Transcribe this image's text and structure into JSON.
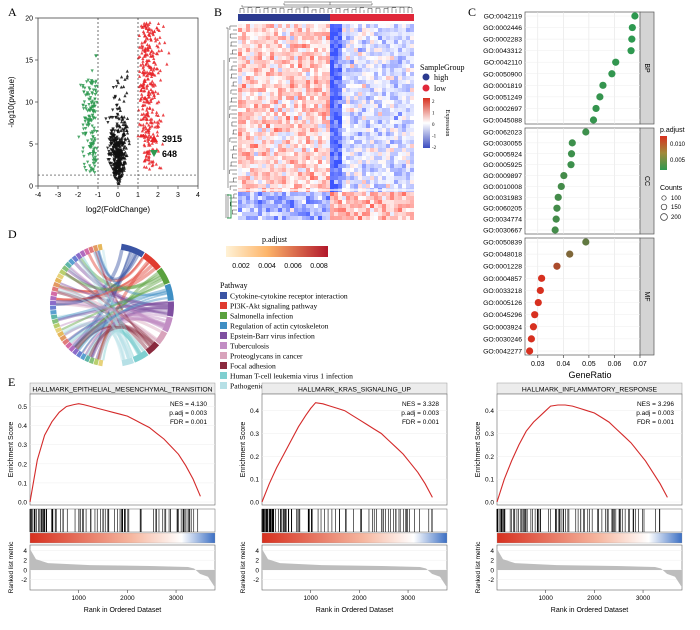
{
  "panel_labels": [
    "A",
    "B",
    "C",
    "D",
    "E"
  ],
  "colors": {
    "up": "#e8262a",
    "down": "#2e9950",
    "ns": "#111111",
    "high": "#2b3a8f",
    "low": "#e0283a"
  },
  "chart_data": [
    {
      "panel": "A",
      "type": "scatter",
      "subtype": "volcano",
      "xlabel": "log2(FoldChange)",
      "ylabel": "-log10(pvalue)",
      "xlim": [
        -4,
        4
      ],
      "ylim": [
        0,
        20
      ],
      "xticks": [
        "-4",
        "-3",
        "-2",
        "-1",
        "0",
        "1",
        "2",
        "3",
        "4"
      ],
      "yticks": [
        "0",
        "5",
        "10",
        "15",
        "20"
      ],
      "vlines": [
        -1,
        1
      ],
      "hline": 1.3,
      "legend": [
        {
          "label": "3915",
          "color": "#e8262a",
          "shape": "triangle-up"
        },
        {
          "label": "648",
          "color": "#2e9950",
          "shape": "triangle-down"
        }
      ]
    },
    {
      "panel": "B",
      "type": "heatmap",
      "legend_title": "SampleGroup",
      "groups": [
        "high",
        "low"
      ],
      "colorbar_title": "Expression",
      "colorbar_ticks": [
        "2",
        "1",
        "0",
        "-1",
        "-2"
      ]
    },
    {
      "panel": "C",
      "type": "scatter",
      "subtype": "dotplot",
      "xlabel": "GeneRatio",
      "xlim": [
        0.025,
        0.07
      ],
      "xticks": [
        "0.03",
        "0.04",
        "0.05",
        "0.06",
        "0.07"
      ],
      "color_title": "p.adjust",
      "color_ticks": [
        "0.010",
        "0.005"
      ],
      "size_title": "Counts",
      "size_ticks": [
        "100",
        "150",
        "200"
      ],
      "facets": [
        {
          "name": "BP",
          "terms": [
            {
              "term": "GO:0042119",
              "x": 0.068,
              "p": 0.0005
            },
            {
              "term": "GO:0002446",
              "x": 0.067,
              "p": 0.0005
            },
            {
              "term": "GO:0002283",
              "x": 0.0668,
              "p": 0.0005
            },
            {
              "term": "GO:0043312",
              "x": 0.0665,
              "p": 0.0005
            },
            {
              "term": "GO:0042110",
              "x": 0.0605,
              "p": 0.0008
            },
            {
              "term": "GO:0050900",
              "x": 0.059,
              "p": 0.0008
            },
            {
              "term": "GO:0001819",
              "x": 0.0555,
              "p": 0.001
            },
            {
              "term": "GO:0051249",
              "x": 0.0543,
              "p": 0.001
            },
            {
              "term": "GO:0002697",
              "x": 0.0528,
              "p": 0.001
            },
            {
              "term": "GO:0045088",
              "x": 0.0518,
              "p": 0.001
            }
          ]
        },
        {
          "name": "CC",
          "terms": [
            {
              "term": "GO:0062023",
              "x": 0.0488,
              "p": 0.0015
            },
            {
              "term": "GO:0030055",
              "x": 0.0435,
              "p": 0.0015
            },
            {
              "term": "GO:0005924",
              "x": 0.0432,
              "p": 0.0015
            },
            {
              "term": "GO:0005925",
              "x": 0.043,
              "p": 0.0015
            },
            {
              "term": "GO:0009897",
              "x": 0.0402,
              "p": 0.002
            },
            {
              "term": "GO:0010008",
              "x": 0.0392,
              "p": 0.002
            },
            {
              "term": "GO:0031983",
              "x": 0.038,
              "p": 0.002
            },
            {
              "term": "GO:0060205",
              "x": 0.0375,
              "p": 0.002
            },
            {
              "term": "GO:0034774",
              "x": 0.0372,
              "p": 0.002
            },
            {
              "term": "GO:0030667",
              "x": 0.0368,
              "p": 0.002
            }
          ]
        },
        {
          "name": "MF",
          "terms": [
            {
              "term": "GO:0050839",
              "x": 0.0488,
              "p": 0.004
            },
            {
              "term": "GO:0048018",
              "x": 0.0425,
              "p": 0.006
            },
            {
              "term": "GO:0001228",
              "x": 0.0375,
              "p": 0.009
            },
            {
              "term": "GO:0004857",
              "x": 0.0315,
              "p": 0.012
            },
            {
              "term": "GO:0033218",
              "x": 0.031,
              "p": 0.012
            },
            {
              "term": "GO:0005126",
              "x": 0.0302,
              "p": 0.012
            },
            {
              "term": "GO:0045296",
              "x": 0.0288,
              "p": 0.012
            },
            {
              "term": "GO:0003924",
              "x": 0.0283,
              "p": 0.012
            },
            {
              "term": "GO:0030246",
              "x": 0.0275,
              "p": 0.012
            },
            {
              "term": "GO:0042277",
              "x": 0.0268,
              "p": 0.012
            }
          ]
        }
      ]
    },
    {
      "panel": "D",
      "type": "chord",
      "color_title": "p.adjust",
      "color_ticks": [
        "0.002",
        "0.004",
        "0.006",
        "0.008"
      ],
      "legend_title": "Pathway",
      "pathways": [
        {
          "name": "Cytokine-cytokine receptor interaction",
          "color": "#3a54a4"
        },
        {
          "name": "PI3K-Akt signaling pathway",
          "color": "#e03b2f"
        },
        {
          "name": "Salmonella infection",
          "color": "#5aa13e"
        },
        {
          "name": "Regulation of actin cytoskeleton",
          "color": "#3f8fc4"
        },
        {
          "name": "Epstein-Barr virus infection",
          "color": "#7f4fa0"
        },
        {
          "name": "Tuberculosis",
          "color": "#c28dc4"
        },
        {
          "name": "Proteoglycans in cancer",
          "color": "#d8a3bb"
        },
        {
          "name": "Focal adhesion",
          "color": "#8a2a3e"
        },
        {
          "name": "Human T-cell leukemia virus 1 infection",
          "color": "#7fcfd0"
        },
        {
          "name": "Pathogenic Escherichia coli infection",
          "color": "#b6e0e6"
        }
      ]
    },
    {
      "panel": "E",
      "type": "line",
      "subtype": "gsea",
      "ylabel_top": "Enrichment Score",
      "ylabel_bottom": "Ranked list metric",
      "xlabel": "Rank in Ordered Dataset",
      "xlim": [
        0,
        3800
      ],
      "xticks": [
        "1000",
        "2000",
        "3000"
      ],
      "plots": [
        {
          "title": "HALLMARK_EPITHELIAL_MESENCHYMAL_TRANSITION",
          "nes": "NES = 4.130",
          "padj": "p.adj = 0.003",
          "fdr": "FDR = 0.001",
          "yticks": [
            "0.0",
            "0.1",
            "0.2",
            "0.3",
            "0.4",
            "0.5"
          ],
          "ymax": 0.55,
          "x": [
            0,
            150,
            300,
            450,
            600,
            750,
            900,
            1000,
            1100,
            1250,
            1400,
            1550,
            1700,
            1850,
            2000,
            2150,
            2300,
            2450,
            2600,
            2750,
            2900,
            3050,
            3200,
            3350,
            3500
          ],
          "y": [
            0,
            0.22,
            0.35,
            0.42,
            0.47,
            0.5,
            0.51,
            0.515,
            0.51,
            0.5,
            0.49,
            0.48,
            0.47,
            0.46,
            0.45,
            0.43,
            0.41,
            0.39,
            0.36,
            0.33,
            0.29,
            0.25,
            0.19,
            0.12,
            0.03
          ]
        },
        {
          "title": "HALLMARK_KRAS_SIGNALING_UP",
          "nes": "NES = 3.328",
          "padj": "p.adj = 0.003",
          "fdr": "FDR = 0.001",
          "yticks": [
            "0.0",
            "0.1",
            "0.2",
            "0.3",
            "0.4"
          ],
          "ymax": 0.46,
          "x": [
            0,
            150,
            300,
            450,
            600,
            750,
            900,
            1000,
            1100,
            1250,
            1400,
            1550,
            1700,
            1850,
            2000,
            2150,
            2300,
            2450,
            2600,
            2750,
            2900,
            3050,
            3200,
            3350,
            3500
          ],
          "y": [
            0,
            0.08,
            0.15,
            0.21,
            0.27,
            0.33,
            0.38,
            0.41,
            0.435,
            0.43,
            0.42,
            0.41,
            0.4,
            0.38,
            0.36,
            0.34,
            0.32,
            0.3,
            0.27,
            0.24,
            0.21,
            0.17,
            0.13,
            0.08,
            0.02
          ]
        },
        {
          "title": "HALLMARK_INFLAMMATORY_RESPONSE",
          "nes": "NES = 3.296",
          "padj": "p.adj = 0.003",
          "fdr": "FDR = 0.001",
          "yticks": [
            "0.0",
            "0.1",
            "0.2",
            "0.3",
            "0.4"
          ],
          "ymax": 0.46,
          "x": [
            0,
            150,
            300,
            450,
            600,
            750,
            900,
            1000,
            1100,
            1250,
            1400,
            1550,
            1700,
            1850,
            2000,
            2150,
            2300,
            2450,
            2600,
            2750,
            2900,
            3050,
            3200,
            3350,
            3500
          ],
          "y": [
            0,
            0.1,
            0.18,
            0.25,
            0.31,
            0.35,
            0.38,
            0.4,
            0.42,
            0.425,
            0.425,
            0.42,
            0.41,
            0.4,
            0.39,
            0.37,
            0.35,
            0.32,
            0.29,
            0.26,
            0.22,
            0.18,
            0.13,
            0.08,
            0.02
          ]
        }
      ],
      "metric_yticks": [
        "4",
        "2",
        "0",
        "-2"
      ]
    }
  ]
}
